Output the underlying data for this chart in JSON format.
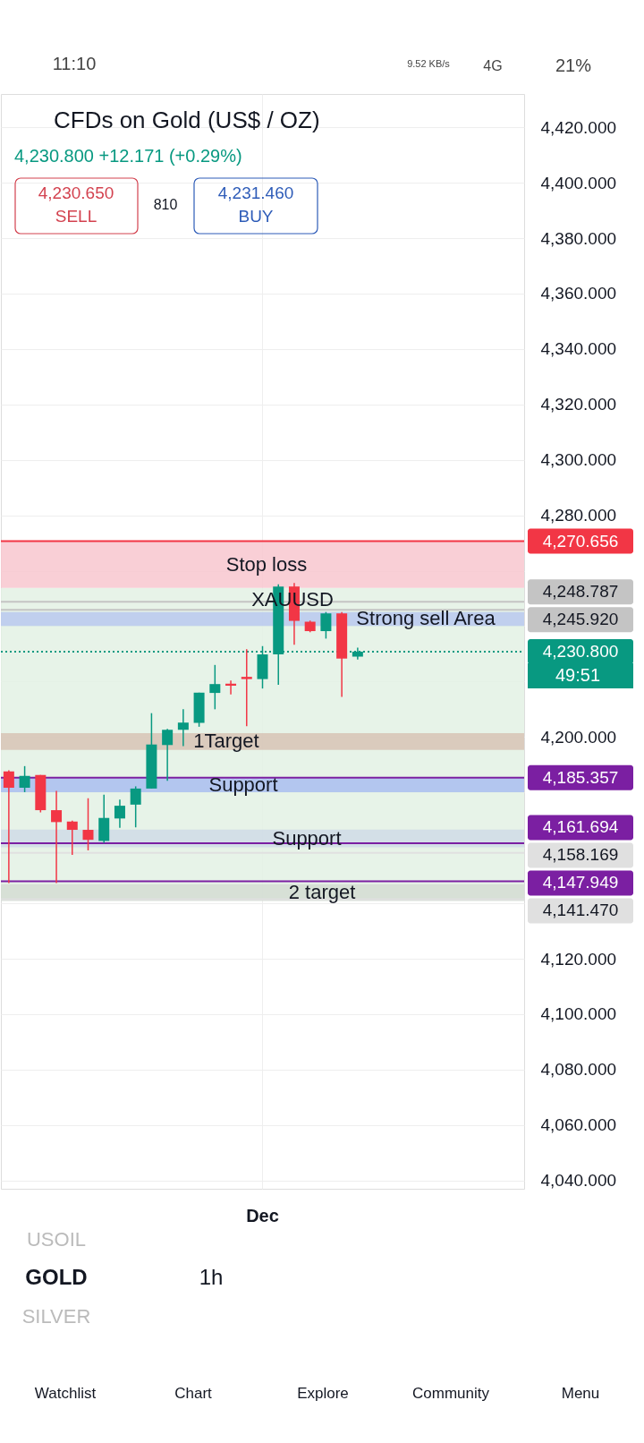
{
  "chart_data": {
    "type": "candlestick",
    "title": "CFDs on Gold (US$ / OZ)",
    "subtitle": "4,230.800  +12.171 (+0.29%)",
    "categories": [
      null,
      null,
      null,
      null,
      null,
      null,
      null,
      null,
      null,
      null,
      null,
      null,
      null,
      null,
      null,
      null,
      "Dec",
      null,
      null,
      null,
      null,
      null,
      null,
      null,
      null,
      null,
      null,
      null,
      null,
      null,
      null,
      null,
      null
    ],
    "ohlc": [
      [
        4187.6,
        4188.0,
        4147.3,
        4181.7
      ],
      [
        4181.7,
        4189.5,
        4180.1,
        4186.0
      ],
      [
        4186.3,
        4186.3,
        4172.8,
        4173.6
      ],
      [
        4173.6,
        4180.6,
        4147.3,
        4169.3
      ],
      [
        4169.5,
        4169.8,
        4157.5,
        4166.5
      ],
      [
        4166.5,
        4177.9,
        4159.1,
        4162.9
      ],
      [
        4162.5,
        4179.2,
        4161.8,
        4170.8
      ],
      [
        4170.6,
        4177.4,
        4167.2,
        4175.2
      ],
      [
        4175.6,
        4182.2,
        4167.4,
        4181.4
      ],
      [
        4181.4,
        4208.6,
        4181.4,
        4197.3
      ],
      [
        4197.1,
        4202.9,
        4184.2,
        4202.6
      ],
      [
        4202.6,
        4210.0,
        4196.7,
        4205.2
      ],
      [
        4205.1,
        4216.0,
        4203.7,
        4216.0
      ],
      [
        4215.9,
        4226.0,
        4210.0,
        4219.1
      ],
      [
        4219.2,
        4220.4,
        4215.4,
        4218.5
      ],
      [
        4221.7,
        4231.7,
        4203.9,
        4220.9
      ],
      [
        4220.9,
        4232.8,
        4217.5,
        4229.8
      ],
      [
        4229.8,
        4255.1,
        4218.8,
        4254.3
      ],
      [
        4254.3,
        4255.6,
        4233.3,
        4241.9
      ],
      [
        4241.6,
        4242.0,
        4237.8,
        4238.2
      ],
      [
        4238.2,
        4245.1,
        4235.5,
        4244.6
      ],
      [
        4244.6,
        4245.1,
        4214.5,
        4228.3
      ],
      [
        4229.0,
        4232.2,
        4228.0,
        4230.8
      ],
      null,
      null,
      null,
      null,
      null,
      null,
      null,
      null,
      null,
      null
    ],
    "colors": [
      "#f23645",
      "#089981",
      "#f23645",
      "#f23645",
      "#f23645",
      "#f23645",
      "#089981",
      "#089981",
      "#089981",
      "#089981",
      "#089981",
      "#089981",
      "#089981",
      "#089981",
      "#f23645",
      "#f23645",
      "#089981",
      "#089981",
      "#f23645",
      "#f23645",
      "#089981",
      "#f23645",
      "#089981",
      null,
      null,
      null,
      null,
      null,
      null,
      null,
      null,
      null,
      null
    ],
    "ylim": [
      4037,
      4432
    ],
    "yticks": [
      {
        "value": 4040,
        "label": "4,040.000"
      },
      {
        "value": 4060,
        "label": "4,060.000"
      },
      {
        "value": 4080,
        "label": "4,080.000"
      },
      {
        "value": 4100,
        "label": "4,100.000"
      },
      {
        "value": 4120,
        "label": "4,120.000"
      },
      {
        "value": 4140,
        "label": null
      },
      {
        "value": 4160,
        "label": null
      },
      {
        "value": 4180,
        "label": null
      },
      {
        "value": 4200,
        "label": "4,200.000"
      },
      {
        "value": 4220,
        "label": null
      },
      {
        "value": 4240,
        "label": null
      },
      {
        "value": 4260,
        "label": null
      },
      {
        "value": 4280,
        "label": "4,280.000"
      },
      {
        "value": 4300,
        "label": "4,300.000"
      },
      {
        "value": 4320,
        "label": "4,320.000"
      },
      {
        "value": 4340,
        "label": "4,340.000"
      },
      {
        "value": 4360,
        "label": "4,360.000"
      },
      {
        "value": 4380,
        "label": "4,380.000"
      },
      {
        "value": 4400,
        "label": "4,400.000"
      },
      {
        "value": 4420,
        "label": "4,420.000"
      }
    ],
    "grid": true,
    "bands": [
      {
        "axis": "y",
        "from": 4141.47,
        "to": 4253.8,
        "label": null,
        "color": "#e3f1e4"
      },
      {
        "axis": "y",
        "from": 4253.8,
        "to": 4270.656,
        "label": "Stop loss",
        "color": "#f8c7cf"
      },
      {
        "axis": "y",
        "from": 4240.1,
        "to": 4245.1,
        "label": "Strong sell Area",
        "color": "#b8c8ee"
      },
      {
        "axis": "y",
        "from": 4195.3,
        "to": 4201.4,
        "label": "1Target",
        "color": "#d7c3b5"
      },
      {
        "axis": "y",
        "from": 4180.1,
        "to": 4185.2,
        "label": "Support",
        "color": "#a9bdf0"
      },
      {
        "axis": "y",
        "from": 4160.2,
        "to": 4166.6,
        "label": "Support",
        "color": "#cfdbe6"
      },
      {
        "axis": "y",
        "from": 4140.8,
        "to": 4146.9,
        "label": "2 target",
        "color": "#d4dcd2"
      }
    ],
    "ref_lines": [
      {
        "axis": "y",
        "value": 4270.656,
        "label": "4,270.656",
        "color": "#f23645",
        "line_style": "solid"
      },
      {
        "axis": "y",
        "value": 4248.787,
        "label": "4,248.787",
        "color": "#c4c4c4",
        "line_style": "solid"
      },
      {
        "axis": "y",
        "value": 4245.92,
        "label": "4,245.920",
        "color": "#c4c4c4",
        "line_style": "solid"
      },
      {
        "axis": "y",
        "value": 4230.8,
        "label": "4,230.800",
        "color": "#089981",
        "line_style": "dotted"
      },
      {
        "axis": "y",
        "value": 4185.357,
        "label": "4,185.357",
        "color": "#7b1fa2",
        "line_style": "solid"
      },
      {
        "axis": "y",
        "value": 4161.694,
        "label": "4,161.694",
        "color": "#7b1fa2",
        "line_style": "solid"
      },
      {
        "axis": "y",
        "value": 4158.169,
        "label": "4,158.169",
        "color": "#e0e0e0",
        "line_style": "solid"
      },
      {
        "axis": "y",
        "value": 4147.949,
        "label": "4,147.949",
        "color": "#7b1fa2",
        "line_style": "solid"
      },
      {
        "axis": "y",
        "value": 4141.47,
        "label": "4,141.470",
        "color": "#e0e0e0",
        "line_style": "solid"
      }
    ],
    "annotations": [
      "11:10",
      "9.52 KB/s",
      "4G",
      "21%",
      "4,230.650",
      "SELL",
      "810",
      "4,231.460",
      "BUY",
      "XAUUSD",
      "49:51",
      "USOIL",
      "GOLD",
      "1h",
      "SILVER",
      "Watchlist",
      "Chart",
      "Explore",
      "Community",
      "Menu"
    ]
  }
}
